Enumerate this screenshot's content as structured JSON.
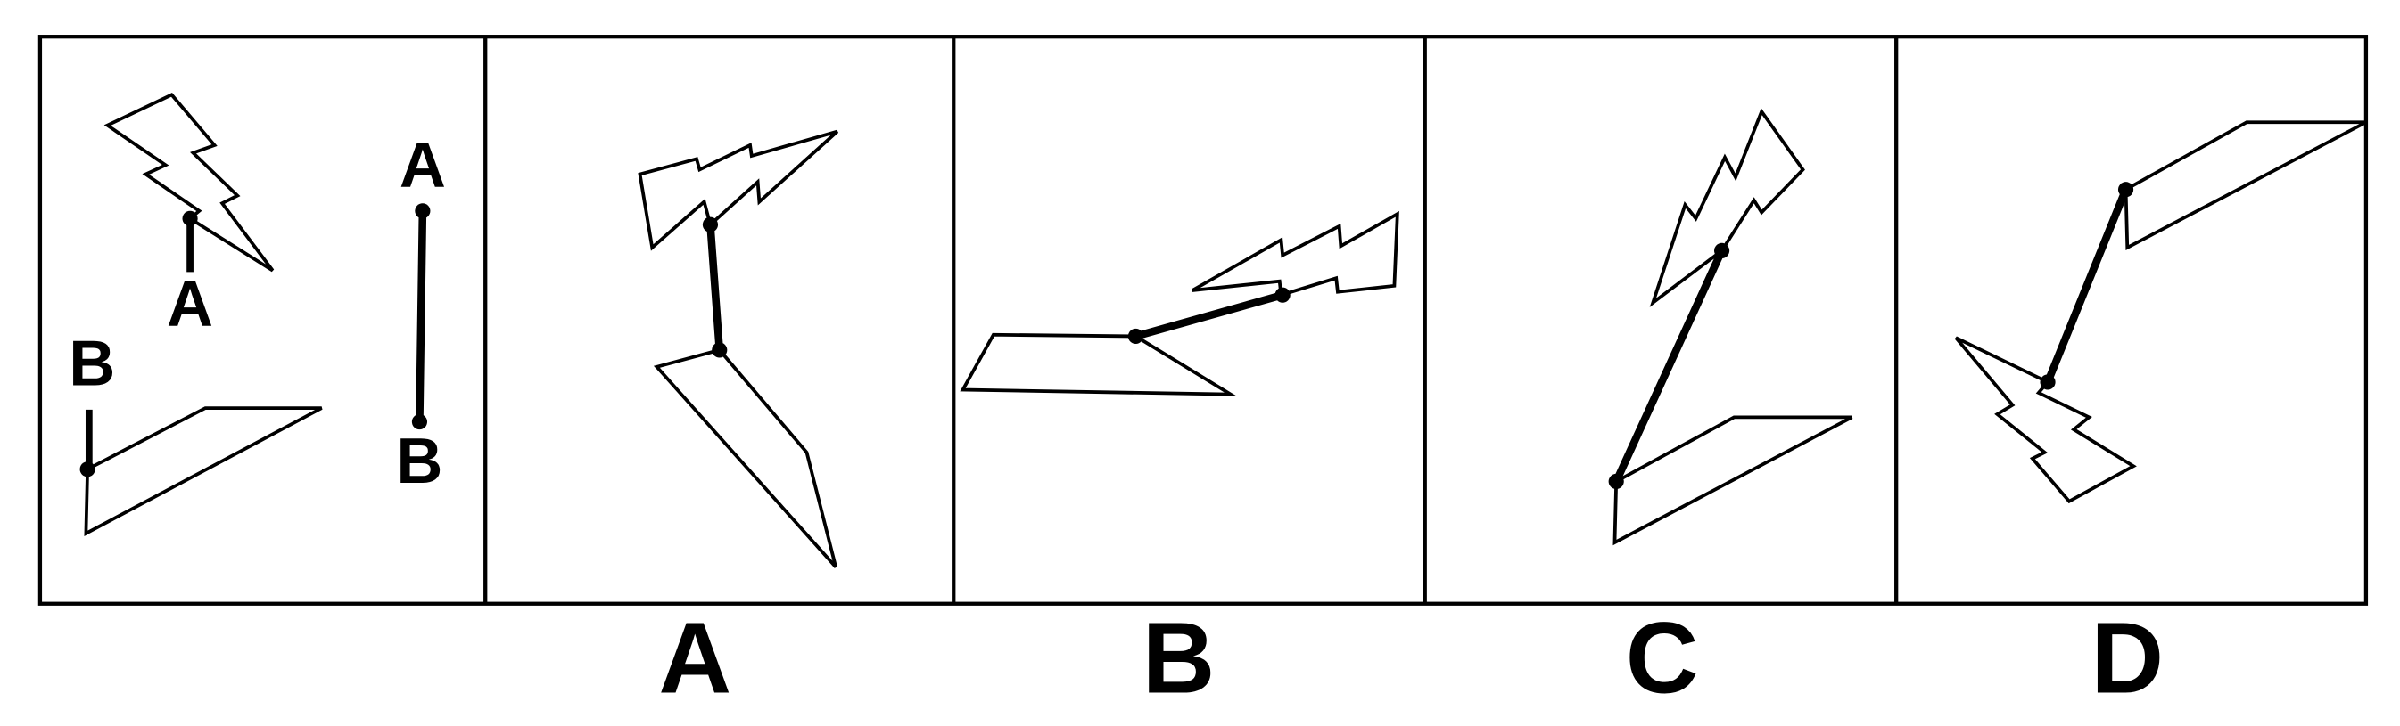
{
  "question": {
    "reference_point_labels": {
      "a": "A",
      "b": "B"
    },
    "segment_labels": {
      "top": "A",
      "bottom": "B"
    }
  },
  "options": [
    {
      "label": "A"
    },
    {
      "label": "B"
    },
    {
      "label": "C"
    },
    {
      "label": "D"
    }
  ]
}
